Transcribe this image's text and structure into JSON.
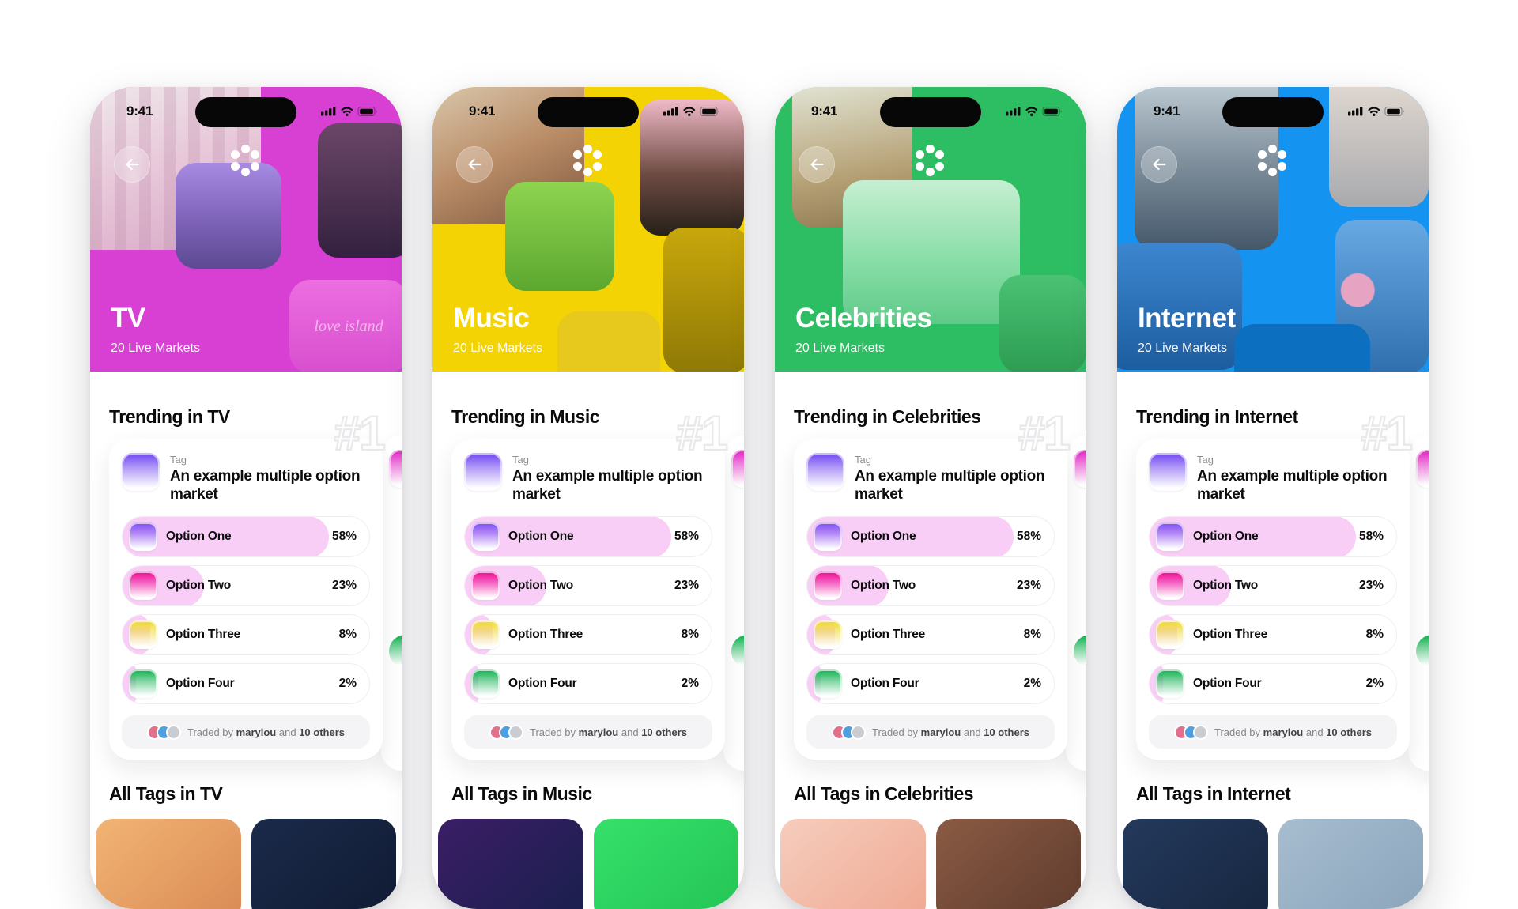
{
  "status_time": "9:41",
  "rank_badge": "#1",
  "market": {
    "tag_label": "Tag",
    "tag_icon_color": "#7C55F2",
    "title": "An example multiple option market",
    "fill_color": "#F9CEF6",
    "options": [
      {
        "label": "Option One",
        "pct": "58%",
        "value": 58,
        "icon_color": "#8458F4"
      },
      {
        "label": "Option Two",
        "pct": "23%",
        "value": 23,
        "icon_color": "#F0189B"
      },
      {
        "label": "Option Three",
        "pct": "8%",
        "value": 8,
        "icon_color": "#EFDC3E"
      },
      {
        "label": "Option Four",
        "pct": "2%",
        "value": 2,
        "icon_color": "#21B85C"
      }
    ],
    "traded": {
      "prefix": "Traded by",
      "user": "marylou",
      "conjunction": "and",
      "others": "10 others"
    },
    "avatar_colors": [
      "#E0708C",
      "#4D9FE0",
      "#C9CDD2"
    ]
  },
  "peek_card": {
    "tag_icon_color": "#E433C9",
    "option_icon_color": "#1FB85A"
  },
  "phones": [
    {
      "category": "TV",
      "subtitle": "20 Live Markets",
      "trending_heading": "Trending in TV",
      "all_tags_heading": "All Tags in TV",
      "theme_color": "#D840D4",
      "collage_caption": "love island",
      "thumbs": [
        {
          "c1": "#F2B473",
          "c2": "#D98A55"
        },
        {
          "c1": "#1B2A4A",
          "c2": "#101B33"
        }
      ]
    },
    {
      "category": "Music",
      "subtitle": "20 Live Markets",
      "trending_heading": "Trending in Music",
      "all_tags_heading": "All Tags in Music",
      "theme_color": "#F3D303",
      "thumbs": [
        {
          "c1": "#3B1E66",
          "c2": "#191F4D"
        },
        {
          "c1": "#35E06A",
          "c2": "#24C455"
        }
      ]
    },
    {
      "category": "Celebrities",
      "subtitle": "20 Live Markets",
      "trending_heading": "Trending in Celebrities",
      "all_tags_heading": "All Tags in Celebrities",
      "theme_color": "#2DBD63",
      "thumbs": [
        {
          "c1": "#F6CDBD",
          "c2": "#EFA892"
        },
        {
          "c1": "#8A5B44",
          "c2": "#5E3A2C"
        }
      ]
    },
    {
      "category": "Internet",
      "subtitle": "20 Live Markets",
      "trending_heading": "Trending in Internet",
      "all_tags_heading": "All Tags in Internet",
      "theme_color": "#1494F0",
      "thumbs": [
        {
          "c1": "#24395C",
          "c2": "#16263F"
        },
        {
          "c1": "#A7BDD0",
          "c2": "#8AA4BA"
        }
      ]
    }
  ]
}
